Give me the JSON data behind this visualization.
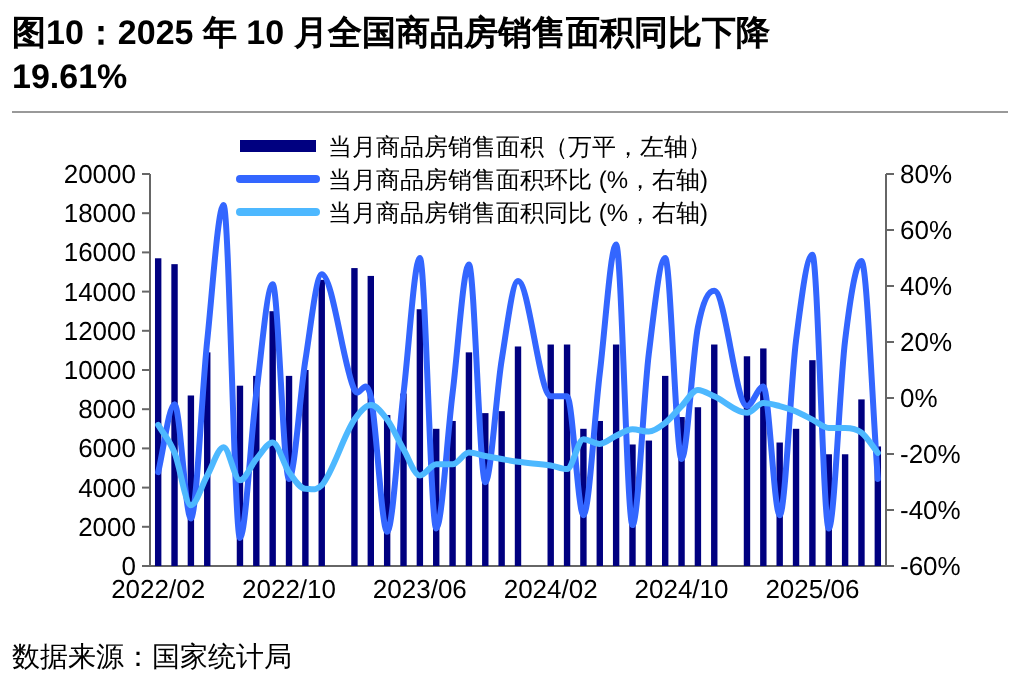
{
  "chart_data": {
    "type": "bar",
    "title": "图10：2025 年 10 月全国商品房销售面积同比下降19.61%",
    "categories": [
      "2022/02",
      null,
      null,
      null,
      null,
      null,
      null,
      null,
      "2022/10",
      null,
      null,
      null,
      null,
      null,
      null,
      null,
      "2023/06",
      null,
      null,
      null,
      null,
      null,
      null,
      null,
      "2024/02",
      null,
      null,
      null,
      null,
      null,
      null,
      null,
      "2024/10",
      null,
      null,
      null,
      null,
      null,
      null,
      null,
      "2025/06",
      null,
      null,
      null,
      null
    ],
    "series": [
      {
        "name": "当月商品房销售面积（万平，左轴）",
        "color": "#000080",
        "values": [
          15700,
          15400,
          8700,
          10900,
          null,
          9200,
          9700,
          13000,
          9700,
          10000,
          14600,
          null,
          15200,
          14800,
          7700,
          8800,
          13100,
          7000,
          7400,
          10900,
          7800,
          7900,
          11200,
          null,
          11300,
          11300,
          7000,
          7400,
          11300,
          6200,
          6400,
          9700,
          7600,
          8100,
          11300,
          null,
          10700,
          11100,
          6300,
          7000,
          10500,
          5700,
          5700,
          8500,
          6100
        ]
      },
      {
        "type": "line",
        "axis": "y2",
        "name": "当月商品房销售面积环比 (%，右轴)",
        "color": "#3366ff",
        "values": [
          -26.5,
          -2.2,
          -43,
          20.6,
          68.9,
          -50,
          1.7,
          40.6,
          -28.9,
          13.5,
          44.2,
          null,
          2.9,
          0.6,
          -47.8,
          1.7,
          50,
          -46.6,
          1.7,
          47.7,
          -30.1,
          13.5,
          41.8,
          null,
          0.6,
          0.6,
          -41.9,
          8.8,
          54.8,
          -45.4,
          15.9,
          50,
          -21.8,
          25.3,
          38.3,
          null,
          -2.9,
          4.1,
          -41.9,
          20.6,
          51.2,
          -46.6,
          20.6,
          48.9,
          -28.9
        ]
      },
      {
        "type": "line",
        "axis": "y2",
        "name": "当月商品房销售面积同比 (%，右轴)",
        "color": "#4db8ff",
        "values": [
          -9.6,
          -19.5,
          -38.3,
          -27.7,
          -17.6,
          -29.4,
          -21.8,
          -15.9,
          -26.5,
          -32.4,
          -31.2,
          null,
          -7.7,
          -2.5,
          -7.7,
          -18.3,
          -27.7,
          -23.7,
          -23.7,
          -19.5,
          -20.7,
          -21.8,
          -22.8,
          null,
          -24.1,
          -25.4,
          -14.7,
          -16.4,
          -13.5,
          -11.2,
          -12,
          -8.9,
          -2.9,
          2.9,
          0.6,
          null,
          -5.3,
          -1.8,
          -2.9,
          -4.8,
          -7.7,
          -10.7,
          -10.7,
          -12.4,
          -19.6
        ]
      }
    ],
    "ylim": [
      0,
      20000
    ],
    "yticks": [
      0,
      2000,
      4000,
      6000,
      8000,
      10000,
      12000,
      14000,
      16000,
      18000,
      20000
    ],
    "y2lim": [
      -60,
      80
    ],
    "y2ticks": [
      {
        "value": -60,
        "label": "-60%"
      },
      {
        "value": -40,
        "label": "-40%"
      },
      {
        "value": -20,
        "label": "-20%"
      },
      {
        "value": 0,
        "label": "0%"
      },
      {
        "value": 20,
        "label": "20%"
      },
      {
        "value": 40,
        "label": "40%"
      },
      {
        "value": 60,
        "label": "60%"
      },
      {
        "value": 80,
        "label": "80%"
      }
    ],
    "legend": "top",
    "grid": false,
    "annotations": [
      "数据来源：国家统计局"
    ]
  }
}
